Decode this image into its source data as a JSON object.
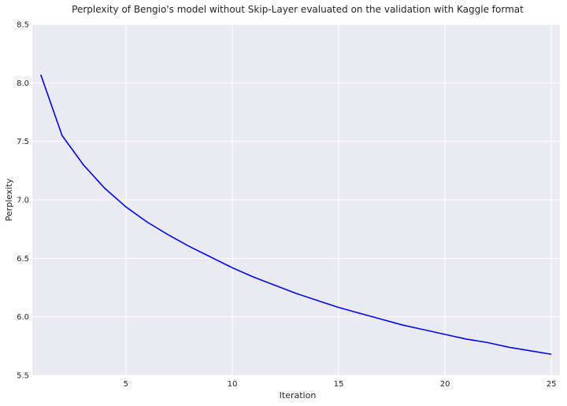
{
  "chart_data": {
    "type": "line",
    "title": "Perplexity of Bengio's model without Skip-Layer evaluated on the validation with Kaggle format",
    "xlabel": "Iteration",
    "ylabel": "Perplexity",
    "xlim": [
      0.6,
      25.4
    ],
    "ylim": [
      5.5,
      8.5
    ],
    "xticks": [
      5,
      10,
      15,
      20,
      25
    ],
    "yticks": [
      5.5,
      6.0,
      6.5,
      7.0,
      7.5,
      8.0,
      8.5
    ],
    "xtick_labels": [
      "5",
      "10",
      "15",
      "20",
      "25"
    ],
    "ytick_labels": [
      "5.5",
      "6.0",
      "6.5",
      "7.0",
      "7.5",
      "8.0",
      "8.5"
    ],
    "grid": true,
    "background": "#EAEAF2",
    "series": [
      {
        "color": "#0000FF",
        "x": [
          1,
          2,
          3,
          4,
          5,
          6,
          7,
          8,
          9,
          10,
          11,
          12,
          13,
          14,
          15,
          16,
          17,
          18,
          19,
          20,
          21,
          22,
          23,
          24,
          25
        ],
        "y": [
          8.07,
          7.55,
          7.3,
          7.1,
          6.94,
          6.81,
          6.7,
          6.6,
          6.51,
          6.42,
          6.34,
          6.27,
          6.2,
          6.14,
          6.08,
          6.03,
          5.98,
          5.93,
          5.89,
          5.85,
          5.81,
          5.78,
          5.74,
          5.71,
          5.68
        ]
      }
    ]
  }
}
